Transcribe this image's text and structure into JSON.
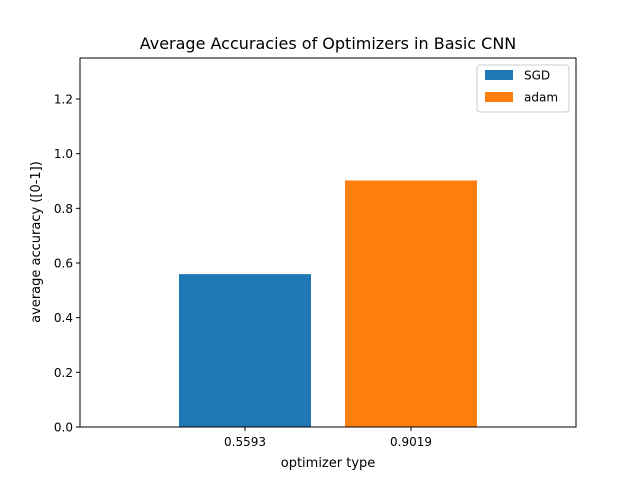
{
  "chart_data": {
    "type": "bar",
    "title": "Average Accuracies of Optimizers in Basic CNN",
    "xlabel": "optimizer type",
    "ylabel": "average accuracy ([0-1])",
    "ylim": [
      0,
      1.35
    ],
    "yticks": [
      "0.0",
      "0.2",
      "0.4",
      "0.6",
      "0.8",
      "1.0",
      "1.2"
    ],
    "grid": false,
    "legend_position": "top-right",
    "series": [
      {
        "name": "SGD",
        "category": "0.5593",
        "value": 0.5593,
        "color": "#1f77b4"
      },
      {
        "name": "adam",
        "category": "0.9019",
        "value": 0.9019,
        "color": "#ff7f0e"
      }
    ]
  }
}
